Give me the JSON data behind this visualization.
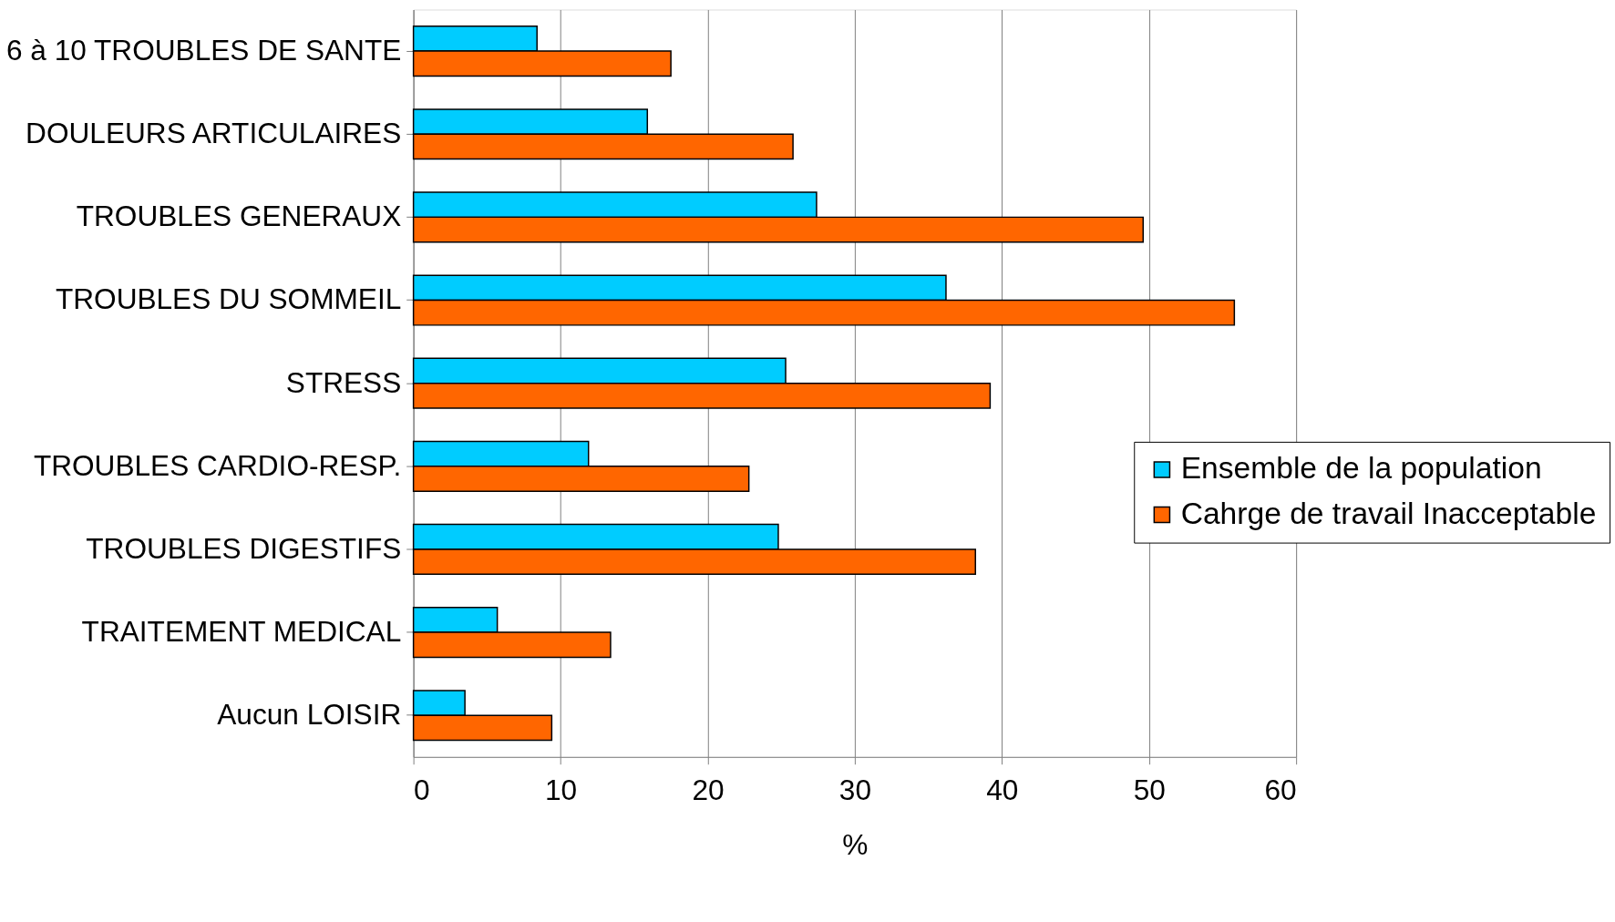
{
  "chart_data": {
    "type": "bar",
    "orientation": "horizontal",
    "xlabel": "%",
    "categories": [
      "6 à 10 TROUBLES DE SANTE",
      "DOULEURS ARTICULAIRES",
      "TROUBLES GENERAUX",
      "TROUBLES DU SOMMEIL",
      "STRESS",
      "TROUBLES CARDIO-RESP.",
      "TROUBLES DIGESTIFS",
      "TRAITEMENT MEDICAL",
      "Aucun LOISIR"
    ],
    "series": [
      {
        "name": "Ensemble de la population",
        "color": "#00ccff",
        "values": [
          8.4,
          15.9,
          27.4,
          36.2,
          25.3,
          11.9,
          24.8,
          5.7,
          3.5
        ]
      },
      {
        "name": "Cahrge de travail Inacceptable",
        "color": "#ff6600",
        "values": [
          17.5,
          25.8,
          49.6,
          55.8,
          39.2,
          22.8,
          38.2,
          13.4,
          9.4
        ]
      }
    ],
    "xlim": [
      0,
      60
    ],
    "xticks": [
      0,
      10,
      20,
      30,
      40,
      50,
      60
    ],
    "grid": "x",
    "legend": "right"
  }
}
